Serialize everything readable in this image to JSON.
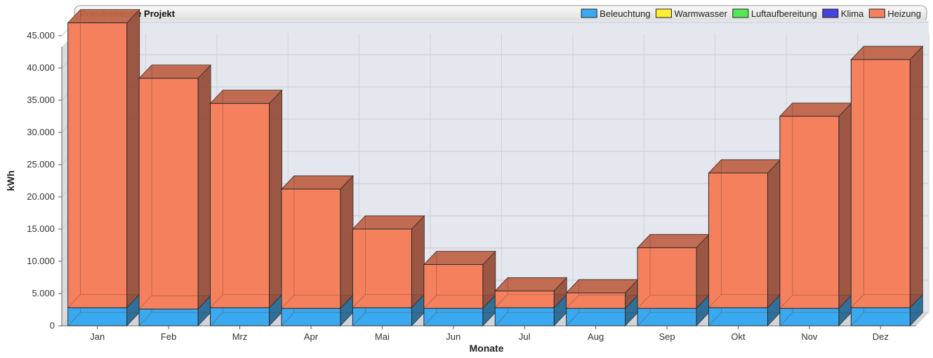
{
  "chart_data": {
    "type": "bar",
    "stacked": true,
    "three_d": true,
    "title": "Primärenergie Projekt",
    "xlabel": "Monate",
    "ylabel": "kWh",
    "categories": [
      "Jan",
      "Feb",
      "Mrz",
      "Apr",
      "Mai",
      "Jun",
      "Jul",
      "Aug",
      "Sep",
      "Okt",
      "Nov",
      "Dez"
    ],
    "ylim": [
      0,
      45000
    ],
    "yticks": [
      0,
      5000,
      10000,
      15000,
      20000,
      25000,
      30000,
      35000,
      40000,
      45000
    ],
    "ytick_labels": [
      "0",
      "5.000",
      "10.000",
      "15.000",
      "20.000",
      "25.000",
      "30.000",
      "35.000",
      "40.000",
      "45.000"
    ],
    "grid": true,
    "legend_position": "top-right",
    "series": [
      {
        "name": "Beleuchtung",
        "color": "#3aa9f0",
        "values": [
          2800,
          2600,
          2800,
          2700,
          2800,
          2700,
          2800,
          2700,
          2700,
          2800,
          2700,
          2800
        ]
      },
      {
        "name": "Warmwasser",
        "color": "#ffee33",
        "values": [
          0,
          0,
          0,
          0,
          0,
          0,
          0,
          0,
          0,
          0,
          0,
          0
        ]
      },
      {
        "name": "Luftaufbereitung",
        "color": "#55e855",
        "values": [
          0,
          0,
          0,
          0,
          0,
          0,
          0,
          0,
          0,
          0,
          0,
          0
        ]
      },
      {
        "name": "Klima",
        "color": "#4444dd",
        "values": [
          0,
          0,
          0,
          0,
          0,
          0,
          0,
          0,
          0,
          0,
          0,
          0
        ]
      },
      {
        "name": "Heizung",
        "color": "#f5805e",
        "values": [
          44200,
          35800,
          31700,
          18500,
          12200,
          6800,
          2600,
          2400,
          9400,
          20900,
          29800,
          38500
        ]
      }
    ]
  }
}
